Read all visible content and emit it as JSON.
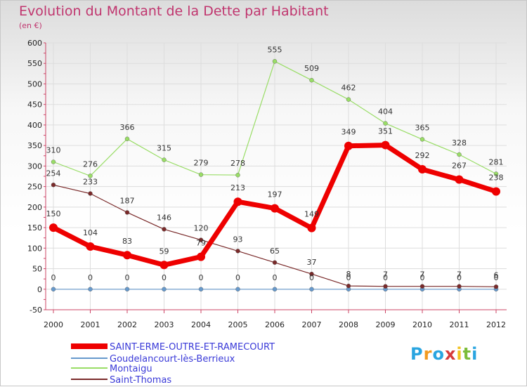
{
  "header": {
    "title": "Evolution du Montant de la Dette par Habitant",
    "unit": "(en €)"
  },
  "logo": {
    "text": "Proxiti",
    "letters": [
      {
        "ch": "P",
        "color": "#2aa5e0"
      },
      {
        "ch": "r",
        "color": "#f29a1f"
      },
      {
        "ch": "o",
        "color": "#2aa5e0"
      },
      {
        "ch": "x",
        "color": "#d63a3a"
      },
      {
        "ch": "i",
        "color": "#f2c21f"
      },
      {
        "ch": "t",
        "color": "#7cbd3a"
      },
      {
        "ch": "i",
        "color": "#2aa5e0"
      }
    ]
  },
  "chart_data": {
    "type": "line",
    "title": "Evolution du Montant de la Dette par Habitant",
    "subtitle": "(en €)",
    "xlabel": "",
    "ylabel": "",
    "x": [
      "2000",
      "2001",
      "2002",
      "2003",
      "2004",
      "2005",
      "2006",
      "2007",
      "2008",
      "2009",
      "2010",
      "2011",
      "2012"
    ],
    "ylim": [
      -50,
      600
    ],
    "yticks": [
      -50,
      0,
      50,
      100,
      150,
      200,
      250,
      300,
      350,
      400,
      450,
      500,
      550,
      600
    ],
    "grid": true,
    "legend_position": "bottom",
    "series": [
      {
        "name": "SAINT-ERME-OUTRE-ET-RAMECOURT",
        "color": "#ee0000",
        "width": 7,
        "values": [
          150,
          104,
          83,
          59,
          79,
          213,
          197,
          149,
          349,
          351,
          292,
          267,
          238
        ],
        "labels": [
          "150",
          "104",
          "83",
          "59",
          "79",
          "213",
          "197",
          "149",
          "349",
          "351",
          "292",
          "267",
          "238"
        ]
      },
      {
        "name": "Goudelancourt-lès-Berrieux",
        "color": "#6699cc",
        "width": 1.2,
        "values": [
          0,
          0,
          0,
          0,
          0,
          0,
          0,
          0,
          0,
          0,
          0,
          0,
          0
        ],
        "labels": [
          "0",
          "0",
          "0",
          "0",
          "0",
          "0",
          "0",
          "0",
          "0",
          "0",
          "0",
          "0",
          "0"
        ]
      },
      {
        "name": "Montaigu",
        "color": "#99dd66",
        "width": 1.2,
        "values": [
          310,
          276,
          366,
          315,
          279,
          278,
          555,
          509,
          462,
          404,
          365,
          328,
          281
        ],
        "labels": [
          "310",
          "276",
          "366",
          "315",
          "279",
          "278",
          "555",
          "509",
          "462",
          "404",
          "365",
          "328",
          "281"
        ]
      },
      {
        "name": "Saint-Thomas",
        "color": "#7a2a2a",
        "width": 1.2,
        "values": [
          254,
          233,
          187,
          146,
          120,
          93,
          65,
          37,
          8,
          7,
          7,
          7,
          6
        ],
        "labels": [
          "254",
          "233",
          "187",
          "146",
          "120",
          "93",
          "65",
          "37",
          "8",
          "7",
          "7",
          "7",
          "6"
        ]
      }
    ]
  }
}
